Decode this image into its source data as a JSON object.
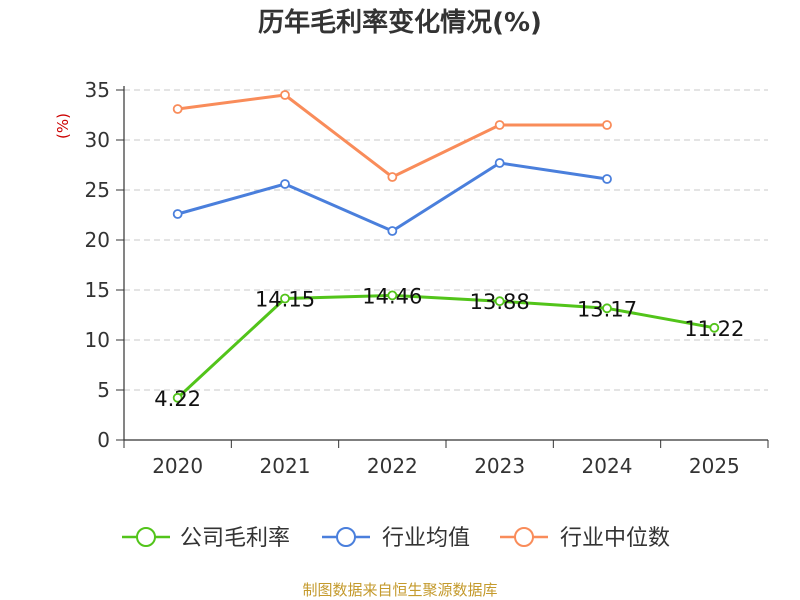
{
  "chart_data": {
    "type": "line",
    "title": "历年毛利率变化情况(%)",
    "ylabel": "(%)",
    "xlabel": "",
    "categories": [
      "2020",
      "2021",
      "2022",
      "2023",
      "2024",
      "2025"
    ],
    "ylim": [
      0,
      35
    ],
    "yticks": [
      0,
      5,
      10,
      15,
      20,
      25,
      30,
      35
    ],
    "grid": true,
    "legend_position": "bottom",
    "series": [
      {
        "name": "公司毛利率",
        "color": "#52c41a",
        "values": [
          4.22,
          14.15,
          14.46,
          13.88,
          13.17,
          11.22
        ],
        "show_labels": true
      },
      {
        "name": "行业均值",
        "color": "#4a7fdc",
        "values": [
          22.6,
          25.6,
          20.9,
          27.7,
          26.1,
          null
        ],
        "show_labels": false
      },
      {
        "name": "行业中位数",
        "color": "#f98c5a",
        "values": [
          33.1,
          34.5,
          26.3,
          31.5,
          31.5,
          null
        ],
        "show_labels": false
      }
    ]
  },
  "footer": {
    "source": "制图数据来自恒生聚源数据库"
  }
}
